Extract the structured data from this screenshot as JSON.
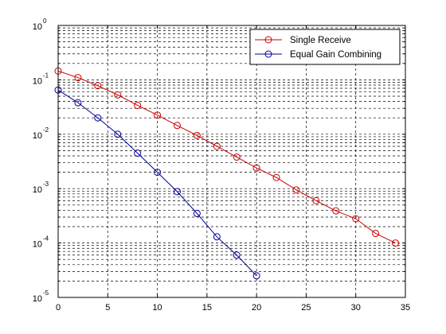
{
  "chart_data": {
    "type": "line",
    "title": "",
    "xlabel": "",
    "ylabel": "",
    "xlim": [
      0,
      35
    ],
    "ylim": [
      1e-05,
      1
    ],
    "yscale": "log",
    "grid": true,
    "legend_position": "top-right",
    "x_ticks": [
      0,
      5,
      10,
      15,
      20,
      25,
      30,
      35
    ],
    "x_tick_labels": [
      "0",
      "5",
      "10",
      "15",
      "20",
      "25",
      "30",
      "35"
    ],
    "y_ticks": [
      1e-05,
      0.0001,
      0.001,
      0.01,
      0.1,
      1
    ],
    "y_tick_labels": [
      {
        "base": "10",
        "exp": "-5"
      },
      {
        "base": "10",
        "exp": "-4"
      },
      {
        "base": "10",
        "exp": "-3"
      },
      {
        "base": "10",
        "exp": "-2"
      },
      {
        "base": "10",
        "exp": "-1"
      },
      {
        "base": "10",
        "exp": "0"
      }
    ],
    "series": [
      {
        "name": "Single Receive",
        "color": "#cc0000",
        "marker": "circle",
        "x": [
          0,
          2,
          4,
          6,
          8,
          10,
          12,
          14,
          16,
          18,
          20,
          22,
          24,
          26,
          28,
          30,
          32,
          34
        ],
        "y": [
          0.145,
          0.11,
          0.078,
          0.053,
          0.034,
          0.0225,
          0.0145,
          0.0095,
          0.006,
          0.0038,
          0.0024,
          0.0016,
          0.00095,
          0.0006,
          0.00039,
          0.00028,
          0.00015,
          0.0001
        ]
      },
      {
        "name": "Equal Gain Combining",
        "color": "#000099",
        "marker": "circle",
        "x": [
          0,
          2,
          4,
          6,
          8,
          10,
          12,
          14,
          16,
          18,
          20
        ],
        "y": [
          0.065,
          0.038,
          0.02,
          0.01,
          0.0045,
          0.002,
          0.00088,
          0.00035,
          0.00013,
          6e-05,
          2.5e-05
        ]
      }
    ]
  }
}
